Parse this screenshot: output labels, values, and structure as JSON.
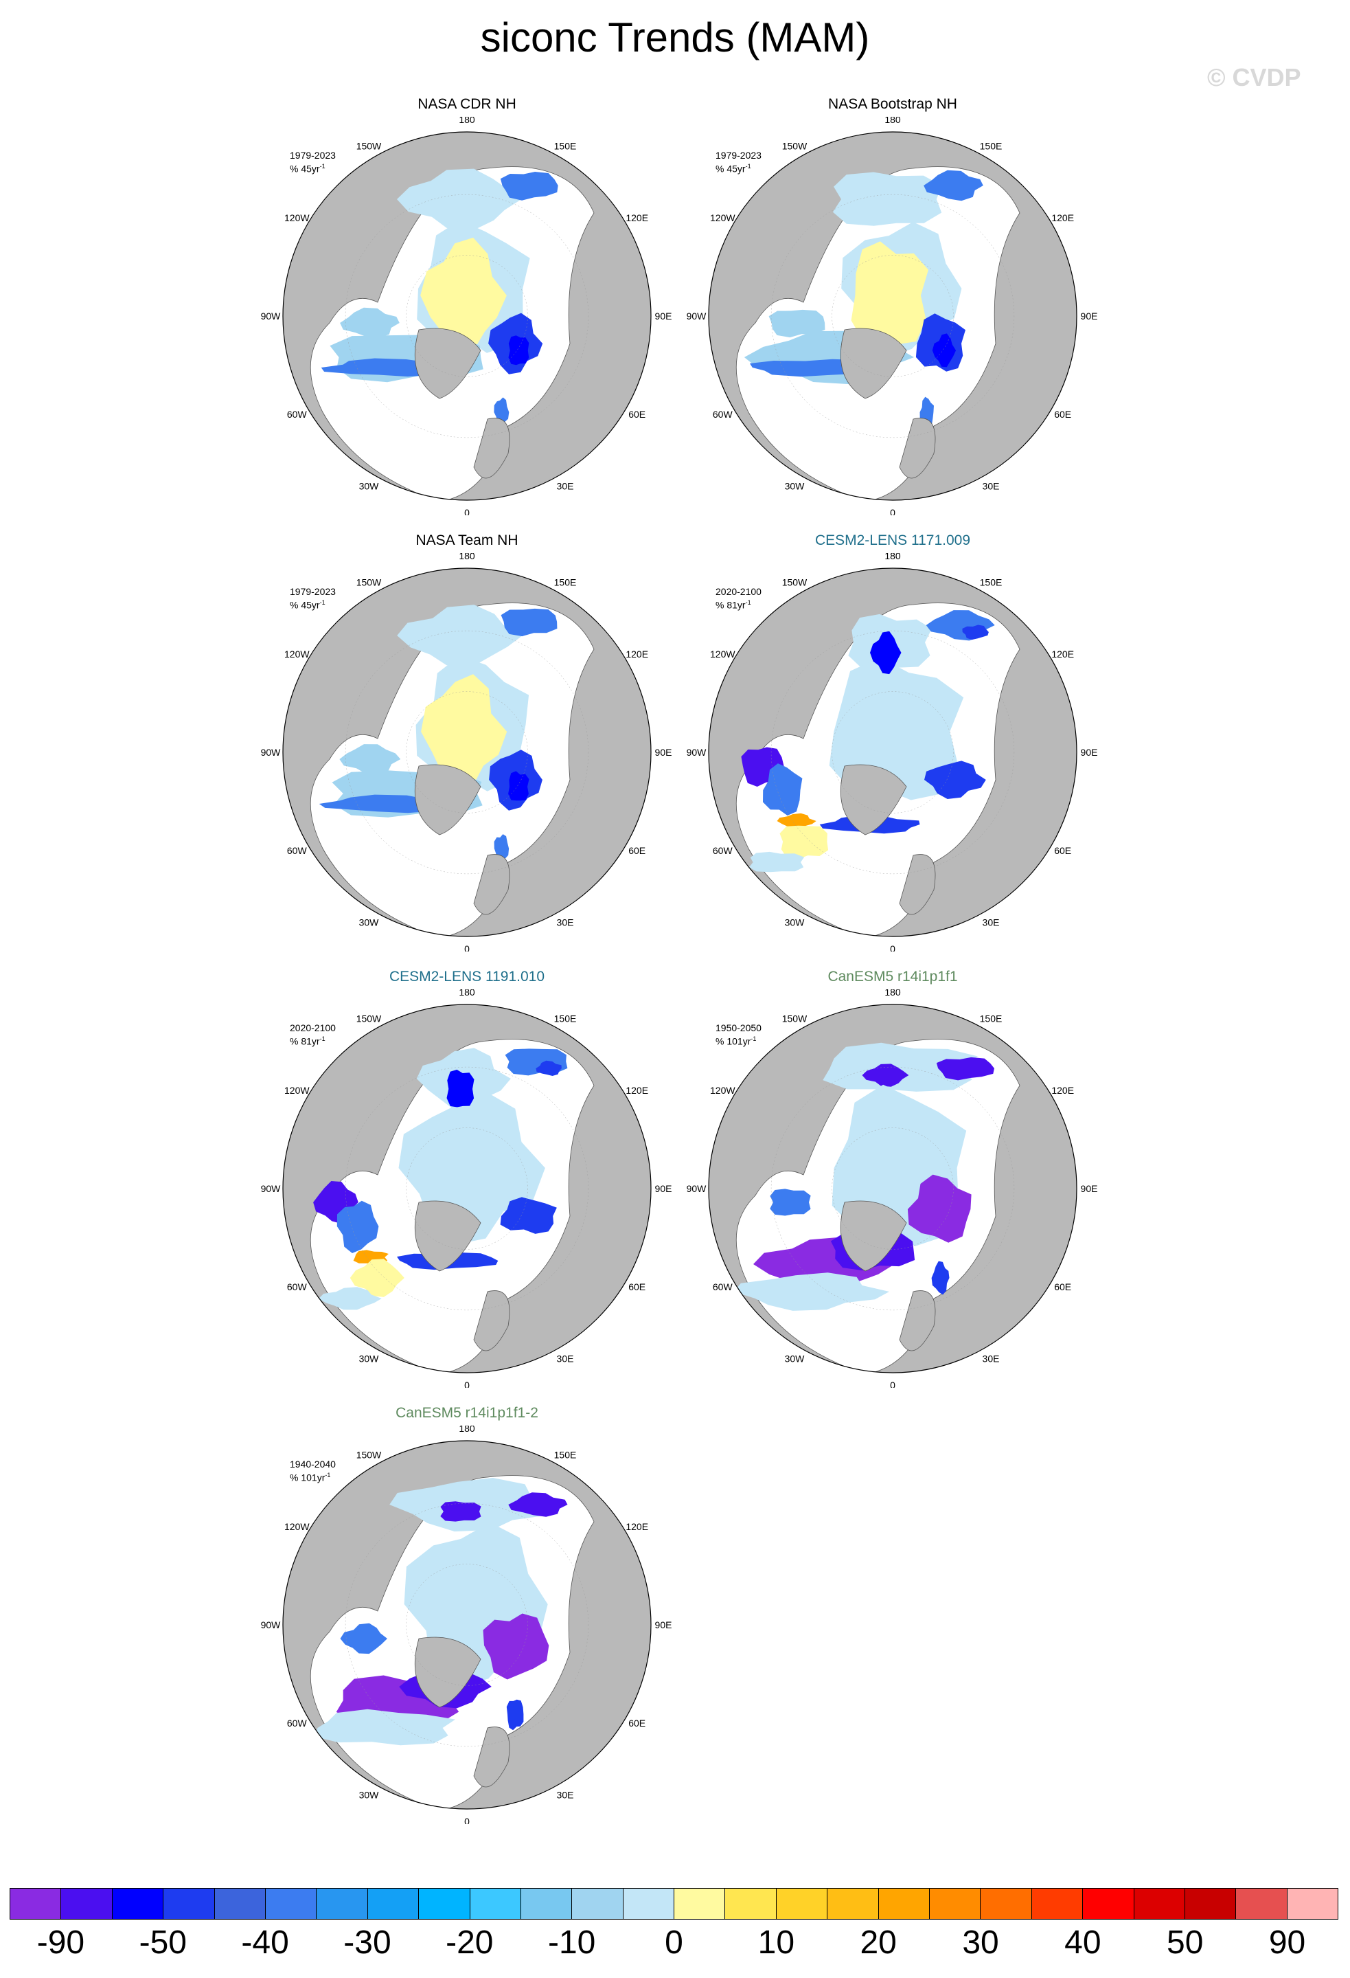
{
  "title": "siconc Trends (MAM)",
  "watermark": "© CVDP",
  "colors": {
    "land": "#b9b9b9",
    "ocean": "#ffffff",
    "obs_title": "#000000",
    "lens_title": "#1f6f8b",
    "canesm_title": "#5e8a5e"
  },
  "panels": [
    {
      "title": "NASA CDR NH",
      "period": "1979-2023",
      "units": "% 45yr",
      "units_sup": "-1",
      "style": "obs",
      "pattern": "obs"
    },
    {
      "title": "NASA Bootstrap NH",
      "period": "1979-2023",
      "units": "% 45yr",
      "units_sup": "-1",
      "style": "obs",
      "pattern": "obs"
    },
    {
      "title": "NASA Team NH",
      "period": "1979-2023",
      "units": "% 45yr",
      "units_sup": "-1",
      "style": "obs",
      "pattern": "obs"
    },
    {
      "title": "CESM2-LENS 1171.009",
      "period": "2020-2100",
      "units": "% 81yr",
      "units_sup": "-1",
      "style": "lens",
      "pattern": "lens"
    },
    {
      "title": "CESM2-LENS 1191.010",
      "period": "2020-2100",
      "units": "% 81yr",
      "units_sup": "-1",
      "style": "lens",
      "pattern": "lens"
    },
    {
      "title": "CanESM5 r14i1p1f1",
      "period": "1950-2050",
      "units": "% 101yr",
      "units_sup": "-1",
      "style": "can",
      "pattern": "can"
    },
    {
      "title": "CanESM5 r14i1p1f1-2",
      "period": "1940-2040",
      "units": "% 101yr",
      "units_sup": "-1",
      "style": "can",
      "pattern": "can"
    }
  ],
  "lon_labels": [
    "180",
    "150E",
    "120E",
    "90E",
    "60E",
    "30E",
    "0",
    "30W",
    "60W",
    "90W",
    "120W",
    "150W"
  ],
  "colorbar": {
    "colors": [
      "#8a2be2",
      "#4b0ff0",
      "#0000ff",
      "#1e3cf0",
      "#3c64dc",
      "#3c7cf0",
      "#2896f0",
      "#14a0f5",
      "#00b4ff",
      "#3cc8ff",
      "#78c8f0",
      "#a0d4f0",
      "#c3e6f7",
      "#fffaa0",
      "#ffe650",
      "#ffd228",
      "#ffbe14",
      "#ffa500",
      "#ff8c00",
      "#ff6e00",
      "#ff3c00",
      "#ff0000",
      "#dc0000",
      "#c80000",
      "#e65050",
      "#ffb4b4"
    ],
    "tick_labels": [
      "-90",
      "-50",
      "-40",
      "-30",
      "-20",
      "-10",
      "0",
      "10",
      "20",
      "30",
      "40",
      "50",
      "90"
    ]
  }
}
